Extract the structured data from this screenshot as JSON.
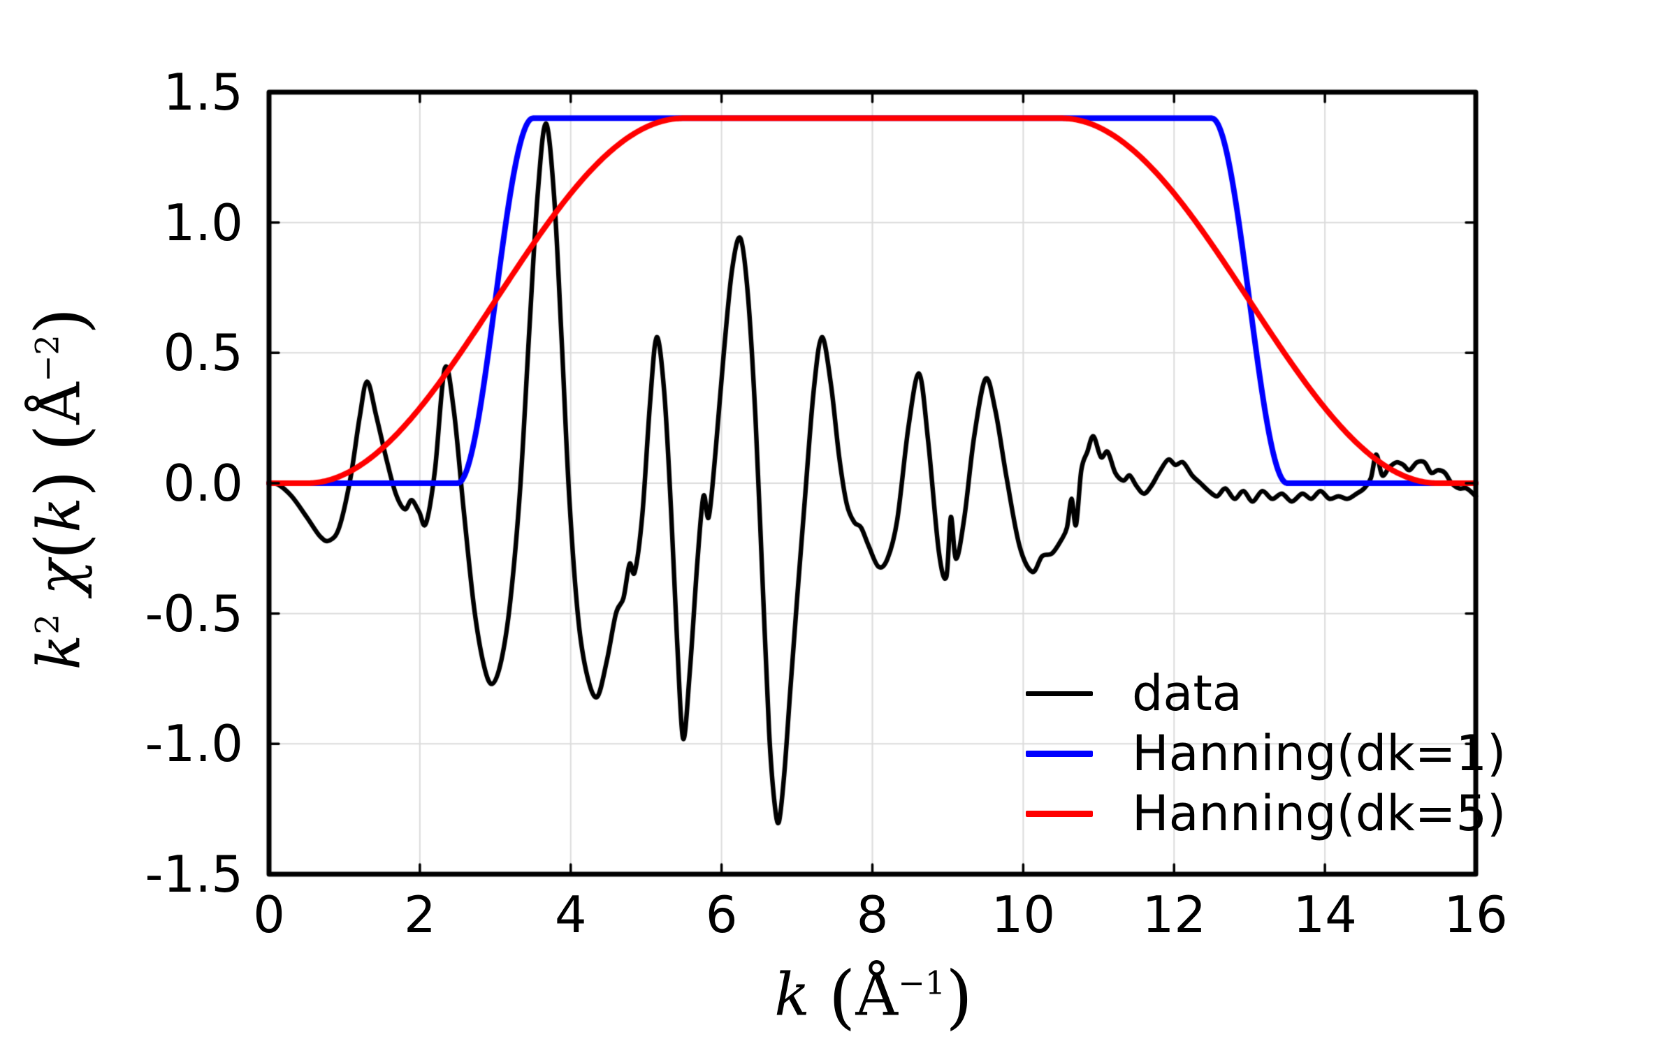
{
  "chart_data": {
    "type": "line",
    "title": "",
    "xlabel": "k (Å⁻¹)",
    "ylabel": "k² χ(k) (Å⁻²)",
    "xlim": [
      0,
      16
    ],
    "ylim": [
      -1.5,
      1.5
    ],
    "xticks": [
      0,
      2,
      4,
      6,
      8,
      10,
      12,
      14,
      16
    ],
    "xtick_labels": [
      "0",
      "2",
      "4",
      "6",
      "8",
      "10",
      "12",
      "14",
      "16"
    ],
    "yticks": [
      1.5,
      1.0,
      0.5,
      0.0,
      -0.5,
      -1.0,
      -1.5
    ],
    "ytick_labels": [
      "1.5",
      "1.0",
      "0.5",
      "0.0",
      "-0.5",
      "-1.0",
      "-1.5"
    ],
    "grid": true,
    "grid_color": "#dcdcdc",
    "axis_color": "#000000",
    "background_color": "#ffffff",
    "xlabel_parts": [
      {
        "kind": "var",
        "text": "k"
      },
      {
        "kind": "plain",
        "text": " "
      },
      {
        "kind": "paren",
        "text": "("
      },
      {
        "kind": "plain",
        "text": "Å"
      },
      {
        "kind": "sup",
        "text": "−1"
      },
      {
        "kind": "paren",
        "text": ")"
      }
    ],
    "ylabel_parts": [
      {
        "kind": "var",
        "text": "k"
      },
      {
        "kind": "sup",
        "text": "2"
      },
      {
        "kind": "plain",
        "text": " "
      },
      {
        "kind": "var",
        "text": "χ"
      },
      {
        "kind": "paren",
        "text": "("
      },
      {
        "kind": "var",
        "text": "k"
      },
      {
        "kind": "paren",
        "text": ")"
      },
      {
        "kind": "plain",
        "text": " "
      },
      {
        "kind": "paren",
        "text": "("
      },
      {
        "kind": "plain",
        "text": "Å"
      },
      {
        "kind": "sup",
        "text": "−2"
      },
      {
        "kind": "paren",
        "text": ")"
      }
    ],
    "legend": {
      "position": "lower right",
      "frame": false,
      "entries": [
        "data",
        "Hanning(dk=1)",
        "Hanning(dk=5)"
      ]
    },
    "series": [
      {
        "name": "data",
        "color": "#000000",
        "line_width": 6.5,
        "points": [
          [
            0.0,
            0.0
          ],
          [
            0.12,
            -0.005
          ],
          [
            0.3,
            -0.05
          ],
          [
            0.5,
            -0.13
          ],
          [
            0.68,
            -0.205
          ],
          [
            0.8,
            -0.22
          ],
          [
            0.93,
            -0.17
          ],
          [
            1.08,
            0.02
          ],
          [
            1.2,
            0.25
          ],
          [
            1.3,
            0.39
          ],
          [
            1.42,
            0.26
          ],
          [
            1.55,
            0.1
          ],
          [
            1.68,
            -0.04
          ],
          [
            1.8,
            -0.1
          ],
          [
            1.89,
            -0.065
          ],
          [
            1.99,
            -0.11
          ],
          [
            2.08,
            -0.155
          ],
          [
            2.2,
            0.05
          ],
          [
            2.33,
            0.44
          ],
          [
            2.45,
            0.28
          ],
          [
            2.58,
            -0.1
          ],
          [
            2.72,
            -0.48
          ],
          [
            2.85,
            -0.7
          ],
          [
            2.96,
            -0.77
          ],
          [
            3.08,
            -0.68
          ],
          [
            3.2,
            -0.45
          ],
          [
            3.33,
            -0.02
          ],
          [
            3.45,
            0.58
          ],
          [
            3.56,
            1.1
          ],
          [
            3.67,
            1.38
          ],
          [
            3.78,
            1.1
          ],
          [
            3.88,
            0.55
          ],
          [
            3.98,
            -0.05
          ],
          [
            4.1,
            -0.52
          ],
          [
            4.22,
            -0.74
          ],
          [
            4.35,
            -0.82
          ],
          [
            4.48,
            -0.68
          ],
          [
            4.6,
            -0.5
          ],
          [
            4.7,
            -0.44
          ],
          [
            4.78,
            -0.31
          ],
          [
            4.85,
            -0.34
          ],
          [
            4.95,
            -0.12
          ],
          [
            5.05,
            0.3
          ],
          [
            5.14,
            0.56
          ],
          [
            5.24,
            0.35
          ],
          [
            5.33,
            -0.1
          ],
          [
            5.41,
            -0.6
          ],
          [
            5.49,
            -0.98
          ],
          [
            5.58,
            -0.72
          ],
          [
            5.68,
            -0.3
          ],
          [
            5.76,
            -0.05
          ],
          [
            5.83,
            -0.13
          ],
          [
            5.92,
            0.12
          ],
          [
            6.03,
            0.5
          ],
          [
            6.14,
            0.82
          ],
          [
            6.25,
            0.94
          ],
          [
            6.35,
            0.72
          ],
          [
            6.45,
            0.25
          ],
          [
            6.54,
            -0.35
          ],
          [
            6.63,
            -0.95
          ],
          [
            6.7,
            -1.22
          ],
          [
            6.76,
            -1.3
          ],
          [
            6.83,
            -1.12
          ],
          [
            6.91,
            -0.8
          ],
          [
            7.0,
            -0.45
          ],
          [
            7.1,
            -0.08
          ],
          [
            7.22,
            0.35
          ],
          [
            7.33,
            0.56
          ],
          [
            7.45,
            0.38
          ],
          [
            7.56,
            0.1
          ],
          [
            7.66,
            -0.08
          ],
          [
            7.76,
            -0.15
          ],
          [
            7.85,
            -0.17
          ],
          [
            7.95,
            -0.24
          ],
          [
            8.08,
            -0.32
          ],
          [
            8.2,
            -0.29
          ],
          [
            8.33,
            -0.14
          ],
          [
            8.48,
            0.22
          ],
          [
            8.62,
            0.42
          ],
          [
            8.74,
            0.16
          ],
          [
            8.88,
            -0.26
          ],
          [
            8.98,
            -0.36
          ],
          [
            9.04,
            -0.13
          ],
          [
            9.11,
            -0.29
          ],
          [
            9.22,
            -0.13
          ],
          [
            9.35,
            0.18
          ],
          [
            9.5,
            0.4
          ],
          [
            9.63,
            0.28
          ],
          [
            9.78,
            0.02
          ],
          [
            9.95,
            -0.24
          ],
          [
            10.12,
            -0.34
          ],
          [
            10.25,
            -0.28
          ],
          [
            10.38,
            -0.27
          ],
          [
            10.5,
            -0.22
          ],
          [
            10.58,
            -0.17
          ],
          [
            10.64,
            -0.06
          ],
          [
            10.7,
            -0.16
          ],
          [
            10.77,
            0.05
          ],
          [
            10.85,
            0.12
          ],
          [
            10.93,
            0.18
          ],
          [
            11.03,
            0.1
          ],
          [
            11.12,
            0.12
          ],
          [
            11.22,
            0.04
          ],
          [
            11.33,
            0.01
          ],
          [
            11.41,
            0.03
          ],
          [
            11.5,
            -0.01
          ],
          [
            11.6,
            -0.04
          ],
          [
            11.7,
            -0.01
          ],
          [
            11.8,
            0.04
          ],
          [
            11.92,
            0.09
          ],
          [
            12.02,
            0.07
          ],
          [
            12.12,
            0.08
          ],
          [
            12.24,
            0.03
          ],
          [
            12.35,
            0.0
          ],
          [
            12.46,
            -0.03
          ],
          [
            12.57,
            -0.05
          ],
          [
            12.68,
            -0.02
          ],
          [
            12.8,
            -0.06
          ],
          [
            12.92,
            -0.03
          ],
          [
            13.04,
            -0.07
          ],
          [
            13.17,
            -0.03
          ],
          [
            13.3,
            -0.06
          ],
          [
            13.43,
            -0.04
          ],
          [
            13.56,
            -0.07
          ],
          [
            13.7,
            -0.04
          ],
          [
            13.82,
            -0.06
          ],
          [
            13.94,
            -0.03
          ],
          [
            14.06,
            -0.06
          ],
          [
            14.18,
            -0.05
          ],
          [
            14.3,
            -0.06
          ],
          [
            14.42,
            -0.04
          ],
          [
            14.52,
            -0.02
          ],
          [
            14.61,
            0.02
          ],
          [
            14.68,
            0.11
          ],
          [
            14.76,
            0.03
          ],
          [
            14.85,
            0.06
          ],
          [
            14.95,
            0.08
          ],
          [
            15.04,
            0.07
          ],
          [
            15.12,
            0.05
          ],
          [
            15.22,
            0.08
          ],
          [
            15.32,
            0.08
          ],
          [
            15.41,
            0.04
          ],
          [
            15.5,
            0.05
          ],
          [
            15.59,
            0.04
          ],
          [
            15.68,
            0.0
          ],
          [
            15.78,
            -0.02
          ],
          [
            15.88,
            -0.02
          ],
          [
            16.0,
            -0.05
          ]
        ]
      },
      {
        "name": "Hanning(dk=1)",
        "color": "#0000ff",
        "line_width": 8,
        "window": {
          "shape": "hanning",
          "kmin": 3,
          "kmax": 13,
          "dk": 1,
          "amplitude": 1.4,
          "k_range": [
            0,
            16
          ]
        }
      },
      {
        "name": "Hanning(dk=5)",
        "color": "#ff0000",
        "line_width": 8,
        "window": {
          "shape": "hanning",
          "kmin": 3,
          "kmax": 13,
          "dk": 5,
          "amplitude": 1.4,
          "k_range": [
            0,
            16
          ]
        }
      }
    ]
  }
}
